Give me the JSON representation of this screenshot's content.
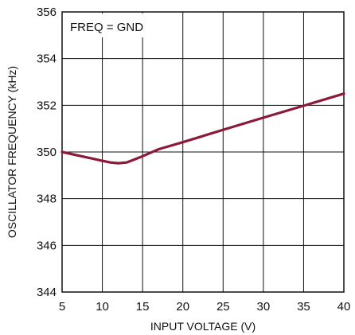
{
  "chart_data": {
    "type": "line",
    "title": "",
    "xlabel": "INPUT VOLTAGE (V)",
    "ylabel": "OSCILLATOR FREQUENCY (kHz)",
    "xlim": [
      5,
      40
    ],
    "ylim": [
      344,
      356
    ],
    "xticks": [
      5,
      10,
      15,
      20,
      25,
      30,
      35,
      40
    ],
    "yticks": [
      344,
      346,
      348,
      350,
      352,
      354,
      356
    ],
    "xtick_labels": [
      "5",
      "10",
      "15",
      "20",
      "25",
      "30",
      "35",
      "40"
    ],
    "ytick_labels": [
      "344",
      "346",
      "348",
      "350",
      "352",
      "354",
      "356"
    ],
    "grid": true,
    "annotation": "FREQ = GND",
    "series": [
      {
        "color": "#8b1a3a",
        "x": [
          5,
          7,
          9,
          10,
          11,
          12,
          13,
          14,
          15,
          17,
          20,
          25,
          30,
          35,
          40
        ],
        "y": [
          350.0,
          349.85,
          349.7,
          349.62,
          349.55,
          349.52,
          349.55,
          349.68,
          349.82,
          350.12,
          350.42,
          350.95,
          351.47,
          351.98,
          352.5
        ]
      }
    ]
  }
}
